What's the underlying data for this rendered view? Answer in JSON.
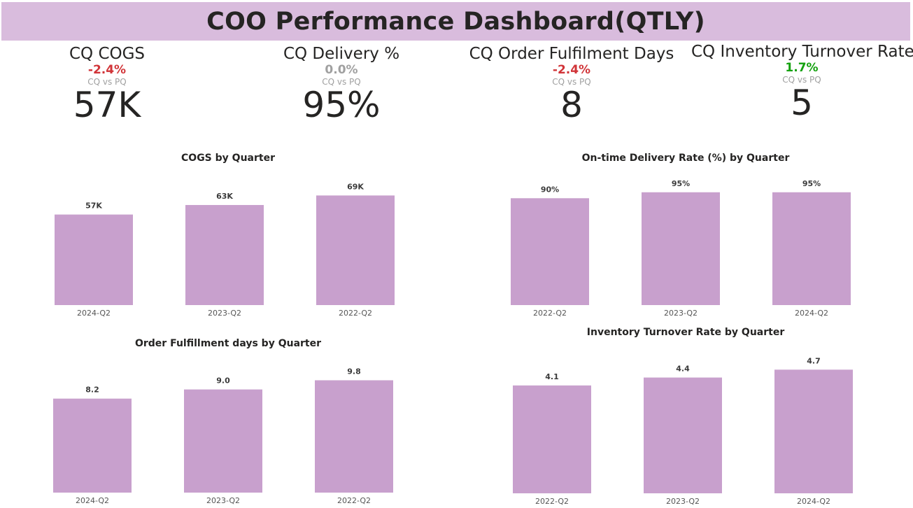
{
  "title": "COO Performance Dashboard(QTLY)",
  "colors": {
    "header_bg": "#d9bcdd",
    "bar": "#c8a0cd",
    "negative": "#d13438",
    "neutral": "#a0a0a0",
    "positive": "#13a10e"
  },
  "kpis": [
    {
      "title": "CQ COGS",
      "delta": "-2.4%",
      "delta_status": "negative",
      "comparison": "CQ vs PQ",
      "value": "57K"
    },
    {
      "title": "CQ Delivery %",
      "delta": "0.0%",
      "delta_status": "neutral",
      "comparison": "CQ vs PQ",
      "value": "95%"
    },
    {
      "title": "CQ Order Fulfilment Days",
      "delta": "-2.4%",
      "delta_status": "negative",
      "comparison": "CQ vs PQ",
      "value": "8"
    },
    {
      "title": "CQ Inventory Turnover Rate",
      "delta": "1.7%",
      "delta_status": "positive",
      "comparison": "CQ vs PQ",
      "value": "5"
    }
  ],
  "chart_data": [
    {
      "type": "bar",
      "title": "COGS by Quarter",
      "categories": [
        "2024-Q2",
        "2023-Q2",
        "2022-Q2"
      ],
      "values": [
        57,
        63,
        69
      ],
      "labels": [
        "57K",
        "63K",
        "69K"
      ],
      "ylim": [
        0,
        74
      ],
      "grid": false
    },
    {
      "type": "bar",
      "title": "On-time Delivery Rate (%) by Quarter",
      "categories": [
        "2022-Q2",
        "2023-Q2",
        "2024-Q2"
      ],
      "values": [
        90,
        95,
        95
      ],
      "labels": [
        "90%",
        "95%",
        "95%"
      ],
      "ylim": [
        0,
        99
      ],
      "grid": false
    },
    {
      "type": "bar",
      "title": "Order Fulfillment days by Quarter",
      "categories": [
        "2024-Q2",
        "2023-Q2",
        "2022-Q2"
      ],
      "values": [
        8.2,
        9.0,
        9.8
      ],
      "labels": [
        "8.2",
        "9.0",
        "9.8"
      ],
      "ylim": [
        0,
        10.5
      ],
      "grid": false
    },
    {
      "type": "bar",
      "title": "Inventory Turnover Rate by Quarter",
      "categories": [
        "2022-Q2",
        "2023-Q2",
        "2024-Q2"
      ],
      "values": [
        4.1,
        4.4,
        4.7
      ],
      "labels": [
        "4.1",
        "4.4",
        "4.7"
      ],
      "ylim": [
        0,
        5.0
      ],
      "grid": false
    }
  ]
}
